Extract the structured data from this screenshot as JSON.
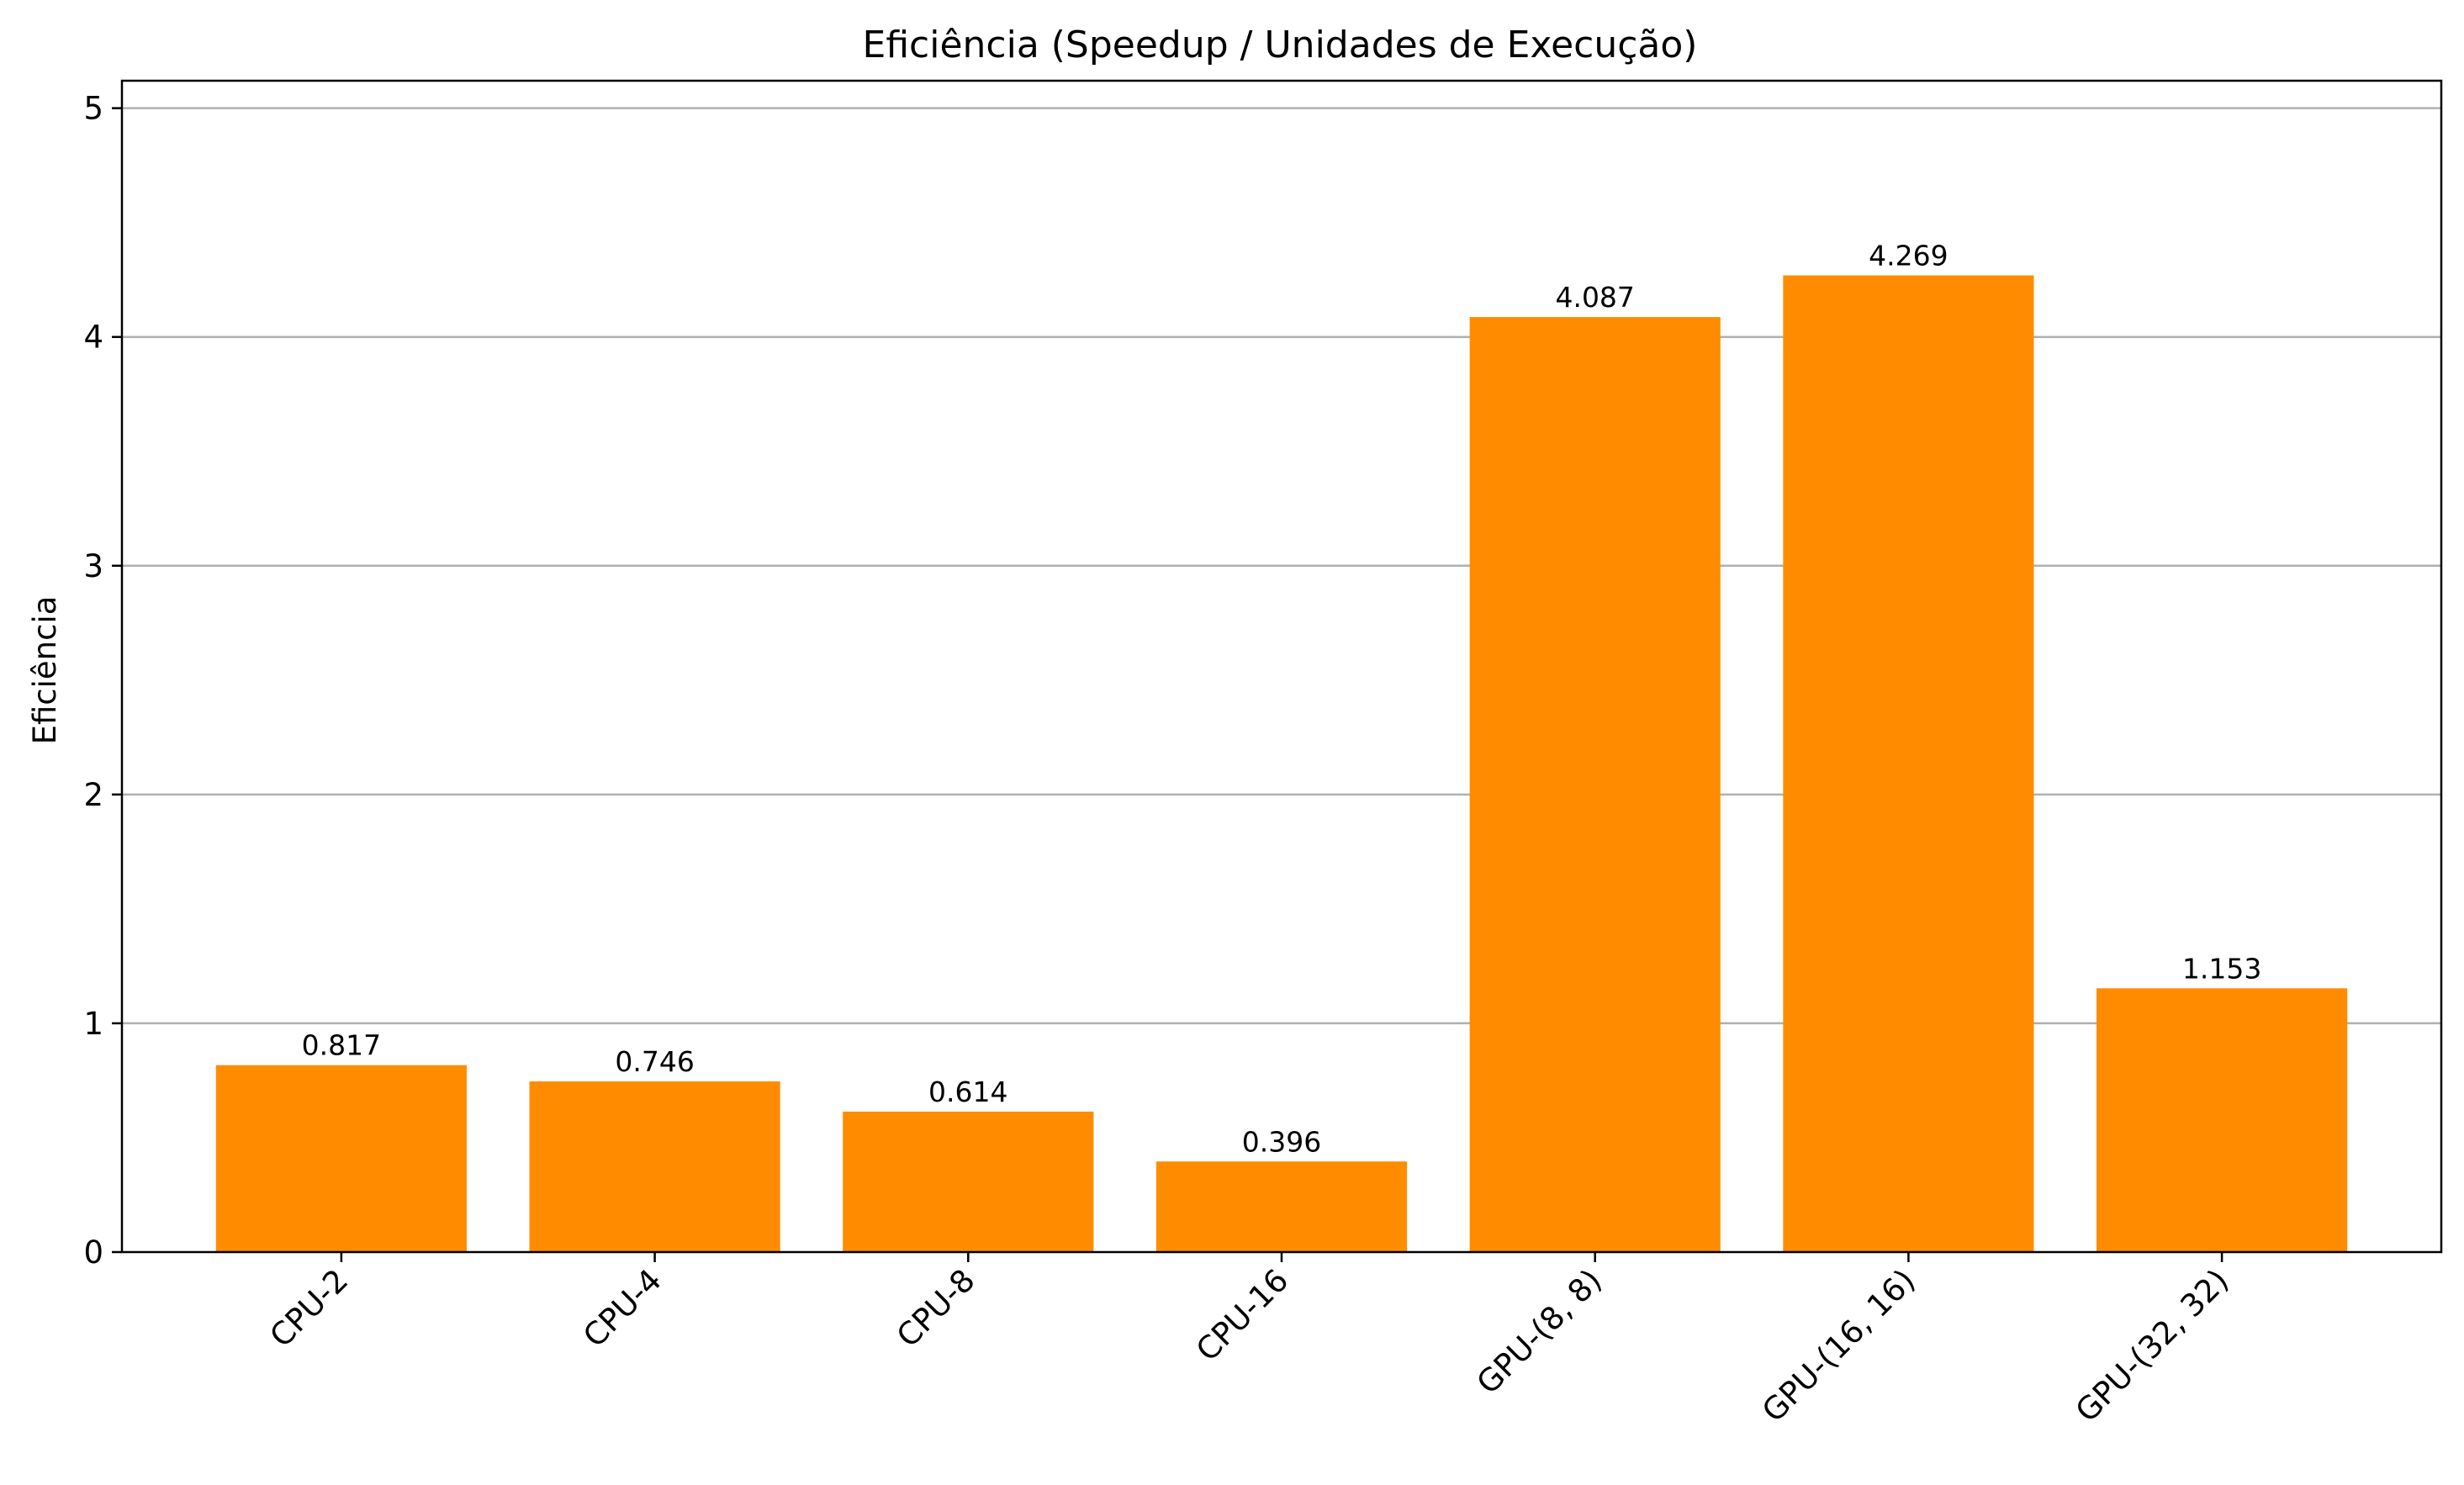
{
  "chart_data": {
    "type": "bar",
    "title": "Eficiência (Speedup / Unidades de Execução)",
    "xlabel": "",
    "ylabel": "Eficiência",
    "categories": [
      "CPU-2",
      "CPU-4",
      "CPU-8",
      "CPU-16",
      "GPU-(8, 8)",
      "GPU-(16, 16)",
      "GPU-(32, 32)"
    ],
    "values": [
      0.817,
      0.746,
      0.614,
      0.396,
      4.087,
      4.269,
      1.153
    ],
    "value_labels": [
      "0.817",
      "0.746",
      "0.614",
      "0.396",
      "4.087",
      "4.269",
      "1.153"
    ],
    "ylim": [
      0,
      5.12
    ],
    "yticks": [
      0,
      1,
      2,
      3,
      4,
      5
    ],
    "ytick_labels": [
      "0",
      "1",
      "2",
      "3",
      "4",
      "5"
    ],
    "grid": "y",
    "bar_color": "#ff8c00",
    "legend": "none",
    "xtick_rotation": 45
  }
}
